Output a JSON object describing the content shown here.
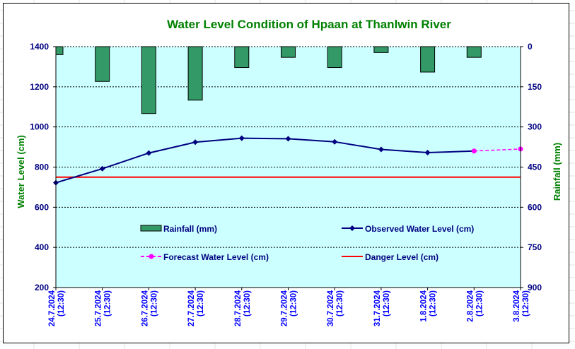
{
  "chart_data": {
    "type": "bar+line",
    "title": "Water Level Condition of Hpaan at Thanlwin River",
    "y_left_label": "Water Level (cm)",
    "y_right_label": "Rainfall (mm)",
    "y_left_ticks": [
      "200",
      "400",
      "600",
      "800",
      "1000",
      "1200",
      "1400"
    ],
    "y_right_ticks": [
      "0",
      "150",
      "300",
      "450",
      "600",
      "750",
      "900"
    ],
    "y_left_range": [
      200,
      1400
    ],
    "y_right_range": [
      0,
      900
    ],
    "y_right_inverted": true,
    "grid": true,
    "categories": [
      {
        "date": "24.7.2024",
        "time": "(12:30)"
      },
      {
        "date": "25.7.2024",
        "time": "(12:30)"
      },
      {
        "date": "26.7.2024",
        "time": "(12:30)"
      },
      {
        "date": "27.7.2024",
        "time": "(12:30)"
      },
      {
        "date": "28.7.2024",
        "time": "(12:30)"
      },
      {
        "date": "29.7.2024",
        "time": "(12:30)"
      },
      {
        "date": "30.7.2024",
        "time": "(12:30)"
      },
      {
        "date": "31.7.2024",
        "time": "(12:30)"
      },
      {
        "date": "1.8.2024",
        "time": "(12:30)"
      },
      {
        "date": "2.8.2024",
        "time": "(12:30)"
      },
      {
        "date": "3.8.2024",
        "time": "(12:30)"
      }
    ],
    "series": [
      {
        "name": "Rainfall (mm)",
        "kind": "bar",
        "axis": "right",
        "color": "#339966",
        "values": [
          30,
          130,
          250,
          200,
          78,
          40,
          78,
          22,
          95,
          40,
          null
        ]
      },
      {
        "name": "Observed Water Level (cm)",
        "kind": "line",
        "axis": "left",
        "color": "#000080",
        "values": [
          722,
          792,
          870,
          924,
          944,
          941,
          926,
          888,
          872,
          880,
          null
        ]
      },
      {
        "name": "Forecast Water Level (cm)",
        "kind": "dashed-line",
        "axis": "left",
        "color": "#ff00ff",
        "values": [
          null,
          null,
          null,
          null,
          null,
          null,
          null,
          null,
          null,
          880,
          890
        ]
      },
      {
        "name": "Danger Level (cm)",
        "kind": "line",
        "axis": "left",
        "color": "#ff0000",
        "values": [
          750,
          750,
          750,
          750,
          750,
          750,
          750,
          750,
          750,
          750,
          750
        ]
      }
    ],
    "plot_background": "#ccffff"
  }
}
